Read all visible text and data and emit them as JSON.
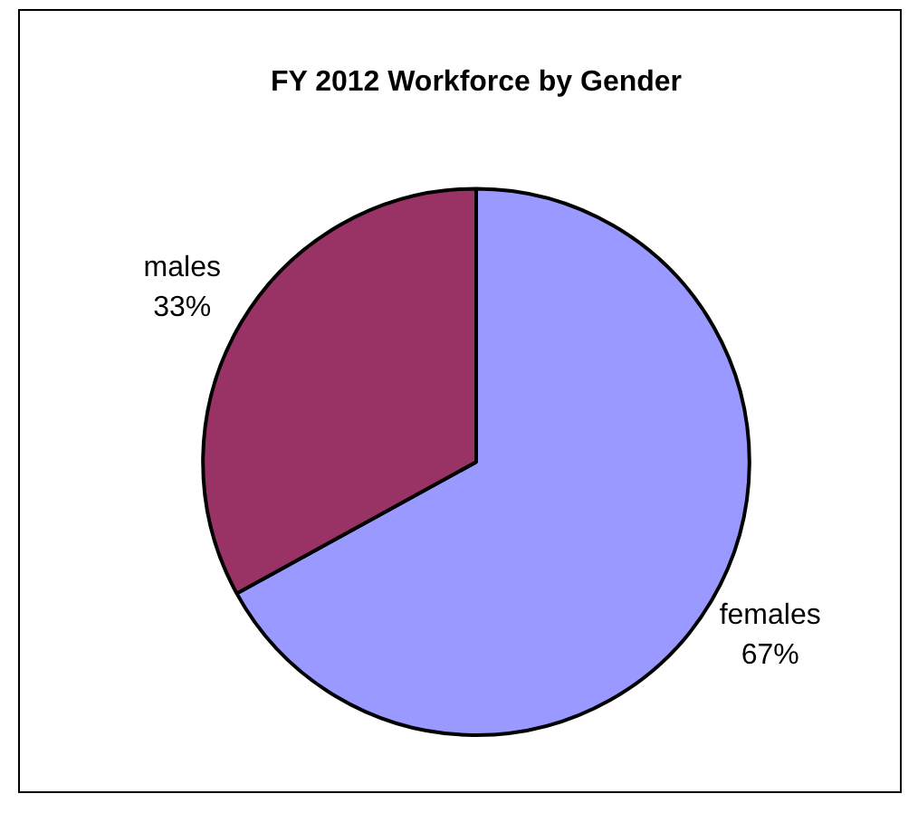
{
  "chart_data": {
    "type": "pie",
    "title": "FY 2012 Workforce by Gender",
    "categories": [
      "females",
      "males"
    ],
    "values": [
      67,
      33
    ],
    "colors": [
      "#9999ff",
      "#993366"
    ],
    "value_labels": [
      "67%",
      "33%"
    ],
    "legend": false
  }
}
